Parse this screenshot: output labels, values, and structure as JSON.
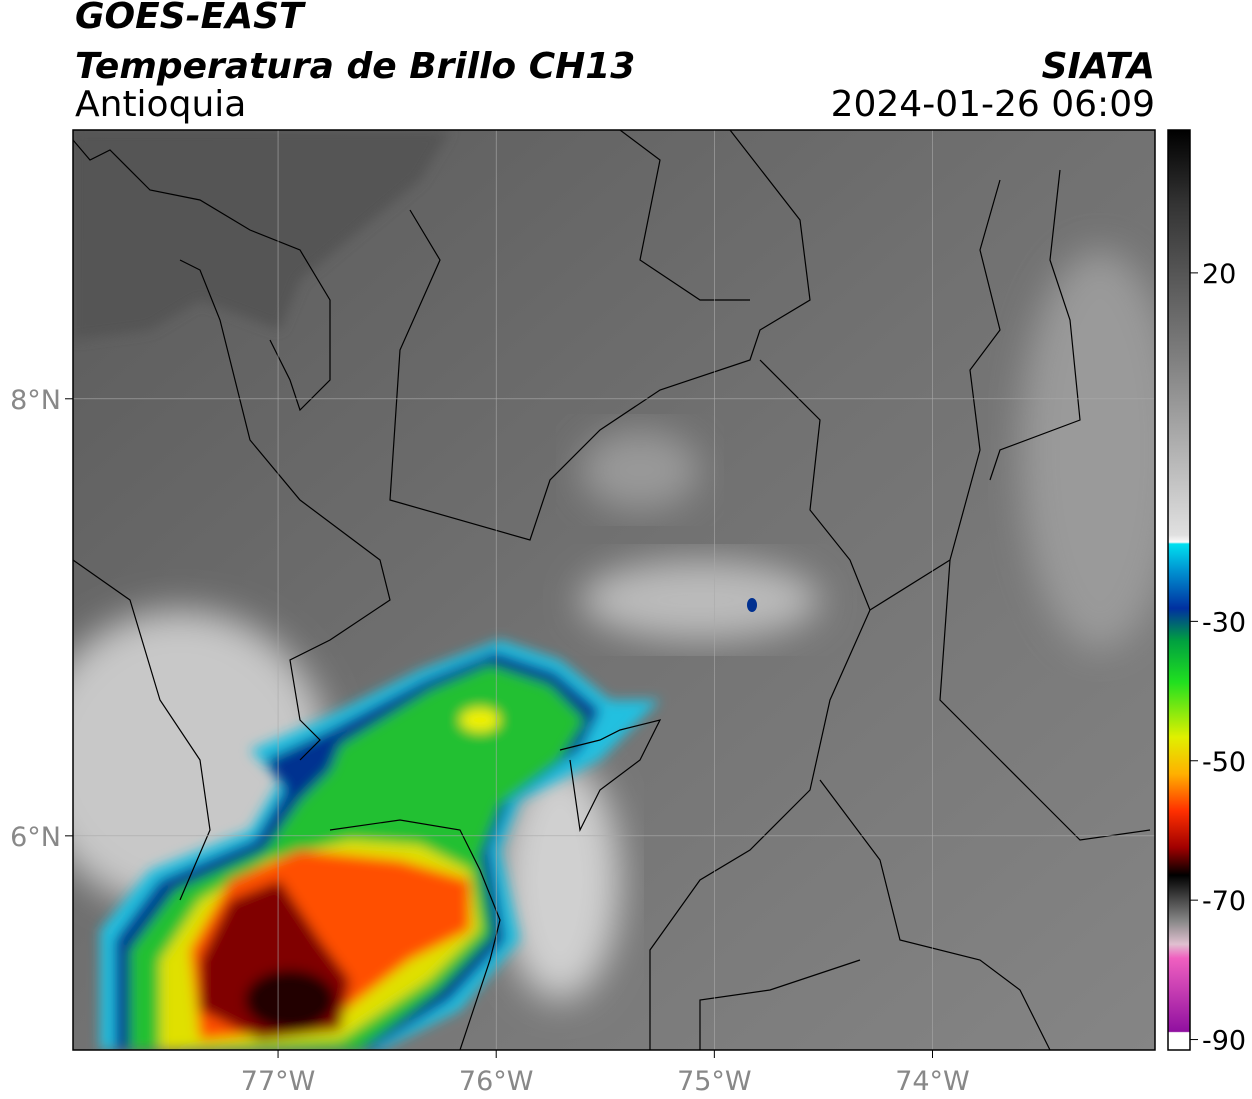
{
  "header": {
    "title": "GOES-EAST",
    "subtitle": "Temperatura de Brillo CH13",
    "region": "Antioquia",
    "source": "SIATA",
    "datetime": "2024-01-26 06:09"
  },
  "map": {
    "xlim": [
      -77.94,
      -72.98
    ],
    "ylim": [
      5.02,
      9.23
    ],
    "xticks": [
      {
        "value": -77,
        "label": "77°W"
      },
      {
        "value": -76,
        "label": "76°W"
      },
      {
        "value": -75,
        "label": "75°W"
      },
      {
        "value": -74,
        "label": "74°W"
      }
    ],
    "yticks": [
      {
        "value": 6,
        "label": "6°N"
      },
      {
        "value": 8,
        "label": "8°N"
      }
    ],
    "grid": true
  },
  "colorbar": {
    "lim": [
      -91.5,
      40.5
    ],
    "ticks": [
      20,
      -30,
      -50,
      -70,
      -90
    ]
  }
}
